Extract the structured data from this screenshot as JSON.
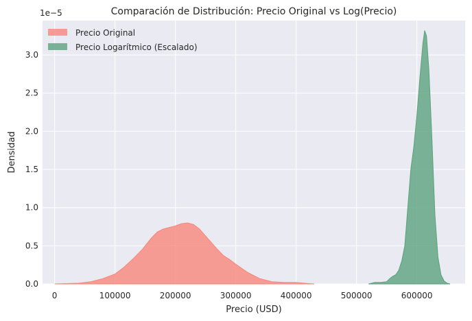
{
  "chart_data": {
    "type": "area",
    "title": "Comparación de Distribución: Precio Original vs Log(Precio)",
    "xlabel": "Precio (USD)",
    "ylabel": "Densidad",
    "y_offset_text": "1e−5",
    "xlim": [
      -20000,
      680000
    ],
    "ylim": [
      0,
      3.45
    ],
    "x_ticks": [
      0,
      100000,
      200000,
      300000,
      400000,
      500000,
      600000
    ],
    "x_tick_labels": [
      "0",
      "100000",
      "200000",
      "300000",
      "400000",
      "500000",
      "600000"
    ],
    "y_ticks": [
      0,
      0.5,
      1.0,
      1.5,
      2.0,
      2.5,
      3.0
    ],
    "y_tick_labels": [
      "0.0",
      "0.5",
      "1.0",
      "1.5",
      "2.0",
      "2.5",
      "3.0"
    ],
    "grid": true,
    "legend": "top-left",
    "series": [
      {
        "name": "Precio Original",
        "color": "#F8877A",
        "x": [
          0,
          40000,
          60000,
          80000,
          100000,
          115000,
          130000,
          145000,
          160000,
          170000,
          180000,
          190000,
          200000,
          210000,
          220000,
          230000,
          240000,
          250000,
          260000,
          270000,
          280000,
          290000,
          300000,
          320000,
          340000,
          360000,
          380000,
          400000,
          420000,
          430000
        ],
        "values": [
          0.0,
          0.01,
          0.03,
          0.07,
          0.13,
          0.22,
          0.33,
          0.45,
          0.6,
          0.68,
          0.72,
          0.74,
          0.76,
          0.79,
          0.8,
          0.78,
          0.72,
          0.63,
          0.54,
          0.45,
          0.37,
          0.32,
          0.26,
          0.15,
          0.07,
          0.03,
          0.02,
          0.02,
          0.005,
          0.0
        ]
      },
      {
        "name": "Precio Logarítmico (Escalado)",
        "color": "#5BA27D",
        "x": [
          520000,
          530000,
          540000,
          550000,
          555000,
          560000,
          565000,
          570000,
          575000,
          580000,
          585000,
          590000,
          595000,
          600000,
          605000,
          610000,
          613000,
          616000,
          620000,
          625000,
          630000,
          635000,
          640000,
          645000,
          650000,
          655000
        ],
        "values": [
          0.0,
          0.02,
          0.02,
          0.03,
          0.07,
          0.1,
          0.12,
          0.18,
          0.3,
          0.5,
          1.0,
          1.5,
          1.8,
          2.2,
          2.7,
          3.15,
          3.32,
          3.25,
          2.8,
          1.9,
          0.9,
          0.35,
          0.12,
          0.04,
          0.01,
          0.0
        ]
      }
    ]
  }
}
